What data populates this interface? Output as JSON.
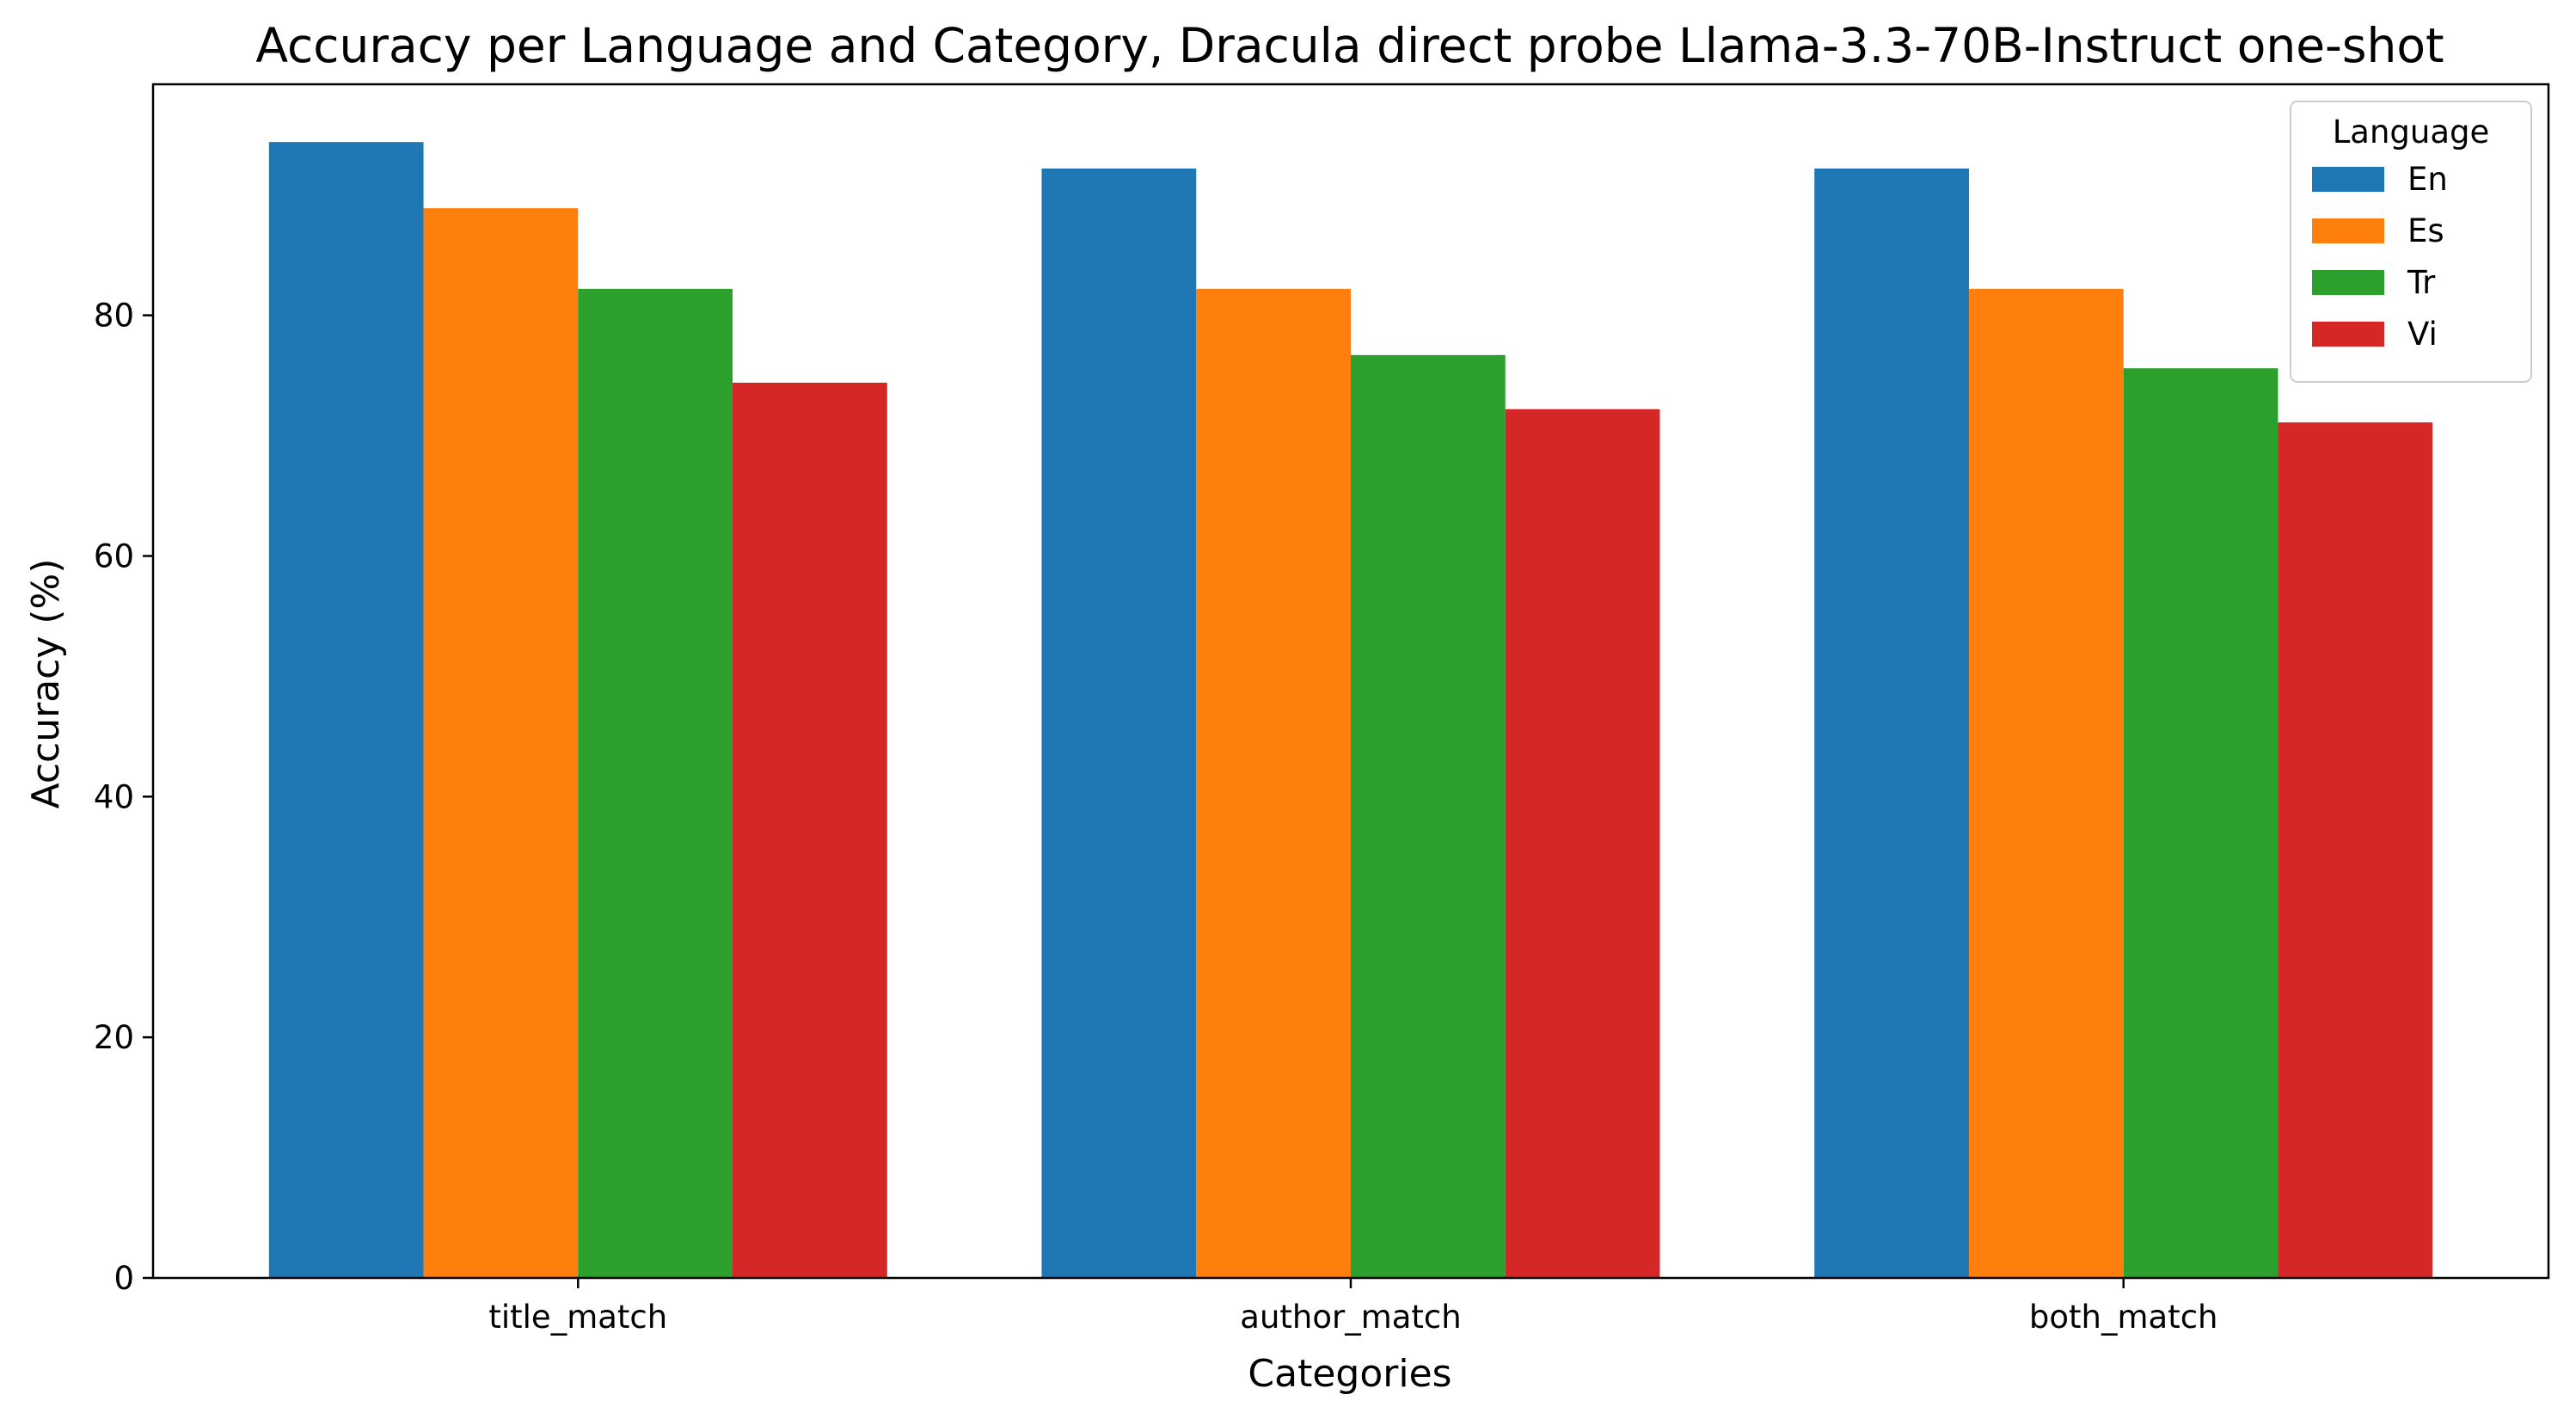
{
  "chart_data": {
    "type": "bar",
    "title": "Accuracy per Language and Category, Dracula direct probe Llama-3.3-70B-Instruct one-shot",
    "xlabel": "Categories",
    "ylabel": "Accuracy (%)",
    "categories": [
      "title_match",
      "author_match",
      "both_match"
    ],
    "series": [
      {
        "name": "En",
        "color": "#1f77b4",
        "values": [
          94.4,
          92.2,
          92.2
        ]
      },
      {
        "name": "Es",
        "color": "#ff7f0e",
        "values": [
          88.9,
          82.2,
          82.2
        ]
      },
      {
        "name": "Tr",
        "color": "#2ca02c",
        "values": [
          82.2,
          76.7,
          75.6
        ]
      },
      {
        "name": "Vi",
        "color": "#d62728",
        "values": [
          74.4,
          72.2,
          71.1
        ]
      }
    ],
    "ylim": [
      0,
      99.2
    ],
    "yticks": [
      0,
      20,
      40,
      60,
      80
    ],
    "grid": false,
    "legend": {
      "title": "Language",
      "position": "top-right"
    }
  }
}
